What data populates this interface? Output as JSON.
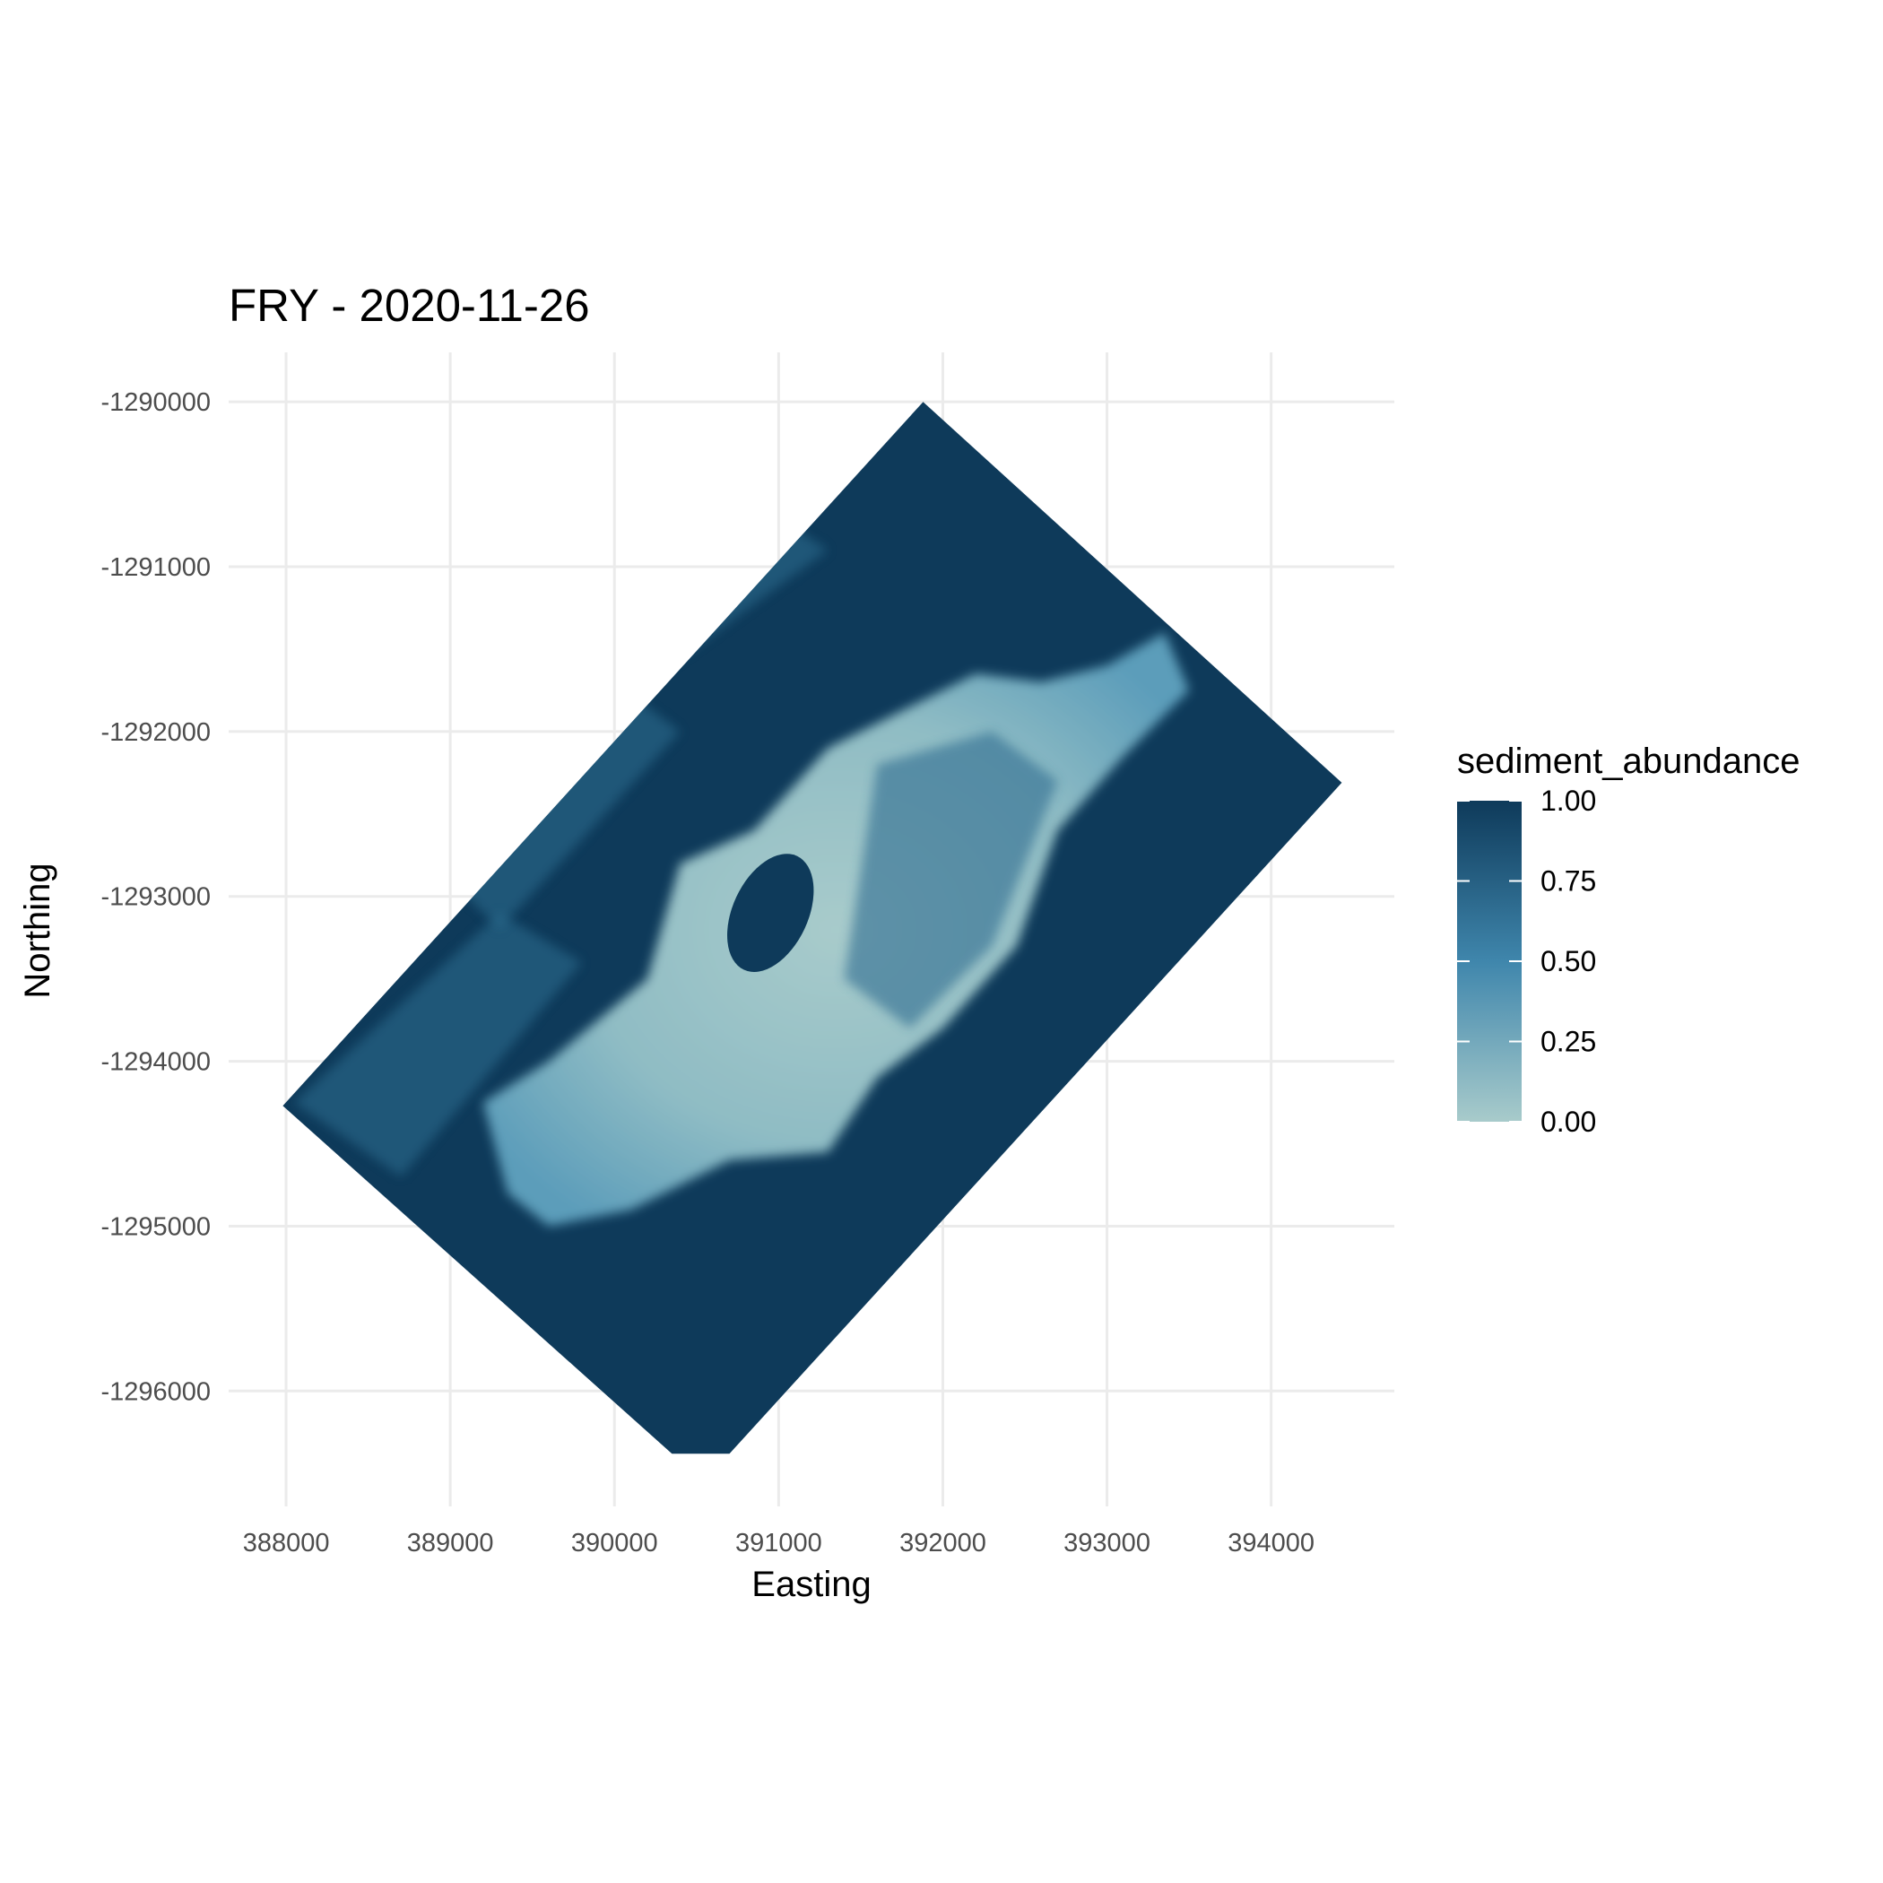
{
  "chart_data": {
    "type": "heatmap",
    "title": "FRY - 2020-11-26",
    "xlabel": "Easting",
    "ylabel": "Northing",
    "x_ticks": [
      388000,
      389000,
      390000,
      391000,
      392000,
      393000,
      394000
    ],
    "x_tick_labels": [
      "388000",
      "389000",
      "390000",
      "391000",
      "392000",
      "393000",
      "394000"
    ],
    "y_ticks": [
      -1290000,
      -1291000,
      -1292000,
      -1293000,
      -1294000,
      -1295000,
      -1296000
    ],
    "y_tick_labels": [
      "-1290000",
      "-1291000",
      "-1292000",
      "-1293000",
      "-1294000",
      "-1295000",
      "-1296000"
    ],
    "xlim": [
      387650,
      394750
    ],
    "ylim": [
      -1296700,
      -1289700
    ],
    "grid": true,
    "raster_footprint": [
      [
        387980,
        -1294270
      ],
      [
        391880,
        -1290000
      ],
      [
        394430,
        -1292310
      ],
      [
        390700,
        -1296380
      ],
      [
        390350,
        -1296380
      ]
    ],
    "low_abundance_region": [
      [
        389200,
        -1294250
      ],
      [
        389600,
        -1294000
      ],
      [
        390200,
        -1293500
      ],
      [
        390400,
        -1292800
      ],
      [
        390850,
        -1292600
      ],
      [
        391300,
        -1292100
      ],
      [
        391700,
        -1291900
      ],
      [
        392200,
        -1291650
      ],
      [
        392600,
        -1291700
      ],
      [
        393000,
        -1291600
      ],
      [
        393350,
        -1291400
      ],
      [
        393500,
        -1291750
      ],
      [
        393100,
        -1292150
      ],
      [
        392700,
        -1292600
      ],
      [
        392450,
        -1293300
      ],
      [
        392000,
        -1293800
      ],
      [
        391600,
        -1294100
      ],
      [
        391300,
        -1294550
      ],
      [
        390700,
        -1294600
      ],
      [
        390100,
        -1294900
      ],
      [
        389600,
        -1295000
      ],
      [
        389350,
        -1294800
      ]
    ],
    "dark_patch_center": [
      390950,
      -1293100
    ],
    "legend": {
      "title": "sediment_abundance",
      "placement": "right",
      "breaks": [
        1.0,
        0.75,
        0.5,
        0.25,
        0.0
      ],
      "labels": [
        "1.00",
        "0.75",
        "0.50",
        "0.25",
        "0.00"
      ],
      "range": [
        0,
        1
      ],
      "low_color": "#a8cbcb",
      "mid_color": "#3f86ac",
      "high_color": "#0e3a5a"
    }
  }
}
